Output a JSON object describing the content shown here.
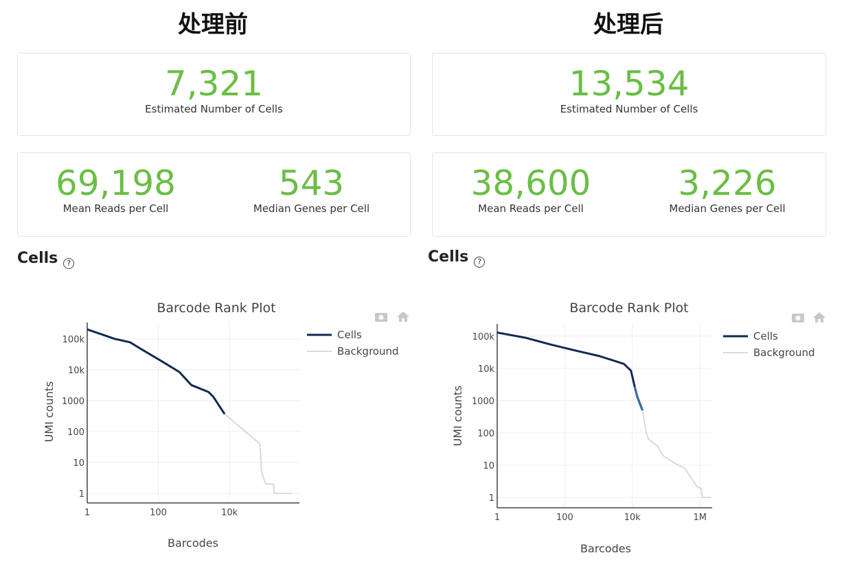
{
  "panels": [
    {
      "heading": "处理前",
      "cells_value": "7,321",
      "cells_label": "Estimated Number of Cells",
      "reads_value": "69,198",
      "reads_label": "Mean Reads per Cell",
      "genes_value": "543",
      "genes_label": "Median Genes per Cell",
      "section": "Cells",
      "help_icon": "?"
    },
    {
      "heading": "处理后",
      "cells_value": "13,534",
      "cells_label": "Estimated Number of Cells",
      "reads_value": "38,600",
      "reads_label": "Mean Reads per Cell",
      "genes_value": "3,226",
      "genes_label": "Median Genes per Cell",
      "section": "Cells",
      "help_icon": "?"
    }
  ],
  "colors": {
    "metric": "#6abe45",
    "cells": "#0f2a52",
    "background": "#d9d9d9",
    "highlight": "#3d8fd1"
  },
  "chart_data": [
    {
      "type": "line",
      "title": "Barcode Rank Plot",
      "xlabel": "Barcodes",
      "ylabel": "UMI counts",
      "xscale": "log",
      "yscale": "log",
      "grid": true,
      "legend": "top-right",
      "xticks": [
        {
          "v": 1,
          "label": "1"
        },
        {
          "v": 100,
          "label": "100"
        },
        {
          "v": 10000,
          "label": "10k"
        }
      ],
      "yticks": [
        {
          "v": 1,
          "label": "1"
        },
        {
          "v": 10,
          "label": "10"
        },
        {
          "v": 100,
          "label": "100"
        },
        {
          "v": 1000,
          "label": "1000"
        },
        {
          "v": 10000,
          "label": "10k"
        },
        {
          "v": 100000,
          "label": "100k"
        }
      ],
      "xlim": [
        1,
        930000
      ],
      "ylim": [
        0.49,
        340000
      ],
      "series": [
        {
          "name": "Cells",
          "color": "#0f2a52",
          "points": [
            [
              1,
              204000
            ],
            [
              6,
              100000
            ],
            [
              16,
              78000
            ],
            [
              30,
              50000
            ],
            [
              107,
              21000
            ],
            [
              390,
              8500
            ],
            [
              850,
              3200
            ],
            [
              2600,
              1900
            ],
            [
              3500,
              1350
            ],
            [
              7321,
              370
            ]
          ]
        },
        {
          "name": "Background",
          "color": "#d9d9d9",
          "points": [
            [
              7321,
              370
            ],
            [
              72000,
              40
            ],
            [
              79000,
              6
            ],
            [
              91000,
              3
            ],
            [
              107000,
              2
            ],
            [
              174000,
              2
            ],
            [
              182000,
              1
            ],
            [
              575000,
              1
            ]
          ]
        }
      ]
    },
    {
      "type": "line",
      "title": "Barcode Rank Plot",
      "xlabel": "Barcodes",
      "ylabel": "UMI counts",
      "xscale": "log",
      "yscale": "log",
      "grid": true,
      "legend": "top-right",
      "xticks": [
        {
          "v": 1,
          "label": "1"
        },
        {
          "v": 100,
          "label": "100"
        },
        {
          "v": 10000,
          "label": "10k"
        },
        {
          "v": 1000000,
          "label": "1M"
        }
      ],
      "yticks": [
        {
          "v": 1,
          "label": "1"
        },
        {
          "v": 10,
          "label": "10"
        },
        {
          "v": 100,
          "label": "100"
        },
        {
          "v": 1000,
          "label": "1000"
        },
        {
          "v": 10000,
          "label": "10k"
        },
        {
          "v": 100000,
          "label": "100k"
        }
      ],
      "xlim": [
        1,
        2300000
      ],
      "ylim": [
        0.48,
        240000
      ],
      "series": [
        {
          "name": "Cells",
          "color": "#0f2a52",
          "points": [
            [
              1,
              129000
            ],
            [
              7,
              89000
            ],
            [
              38,
              55000
            ],
            [
              200,
              36000
            ],
            [
              1070,
              24000
            ],
            [
              5600,
              13800
            ],
            [
              9100,
              8500
            ],
            [
              11700,
              2700
            ],
            [
              14100,
              1300
            ],
            [
              20000,
              500
            ]
          ],
          "highlight_range": [
            10000,
            20000
          ]
        },
        {
          "name": "Background",
          "color": "#d9d9d9",
          "points": [
            [
              20000,
              500
            ],
            [
              25700,
              105
            ],
            [
              30000,
              65
            ],
            [
              54000,
              40
            ],
            [
              81000,
              20
            ],
            [
              158000,
              12.6
            ],
            [
              370000,
              7.8
            ],
            [
              660000,
              3
            ],
            [
              850000,
              2.1
            ],
            [
              1100000,
              1.95
            ],
            [
              1170000,
              1
            ],
            [
              2140000,
              1
            ]
          ]
        }
      ]
    }
  ]
}
